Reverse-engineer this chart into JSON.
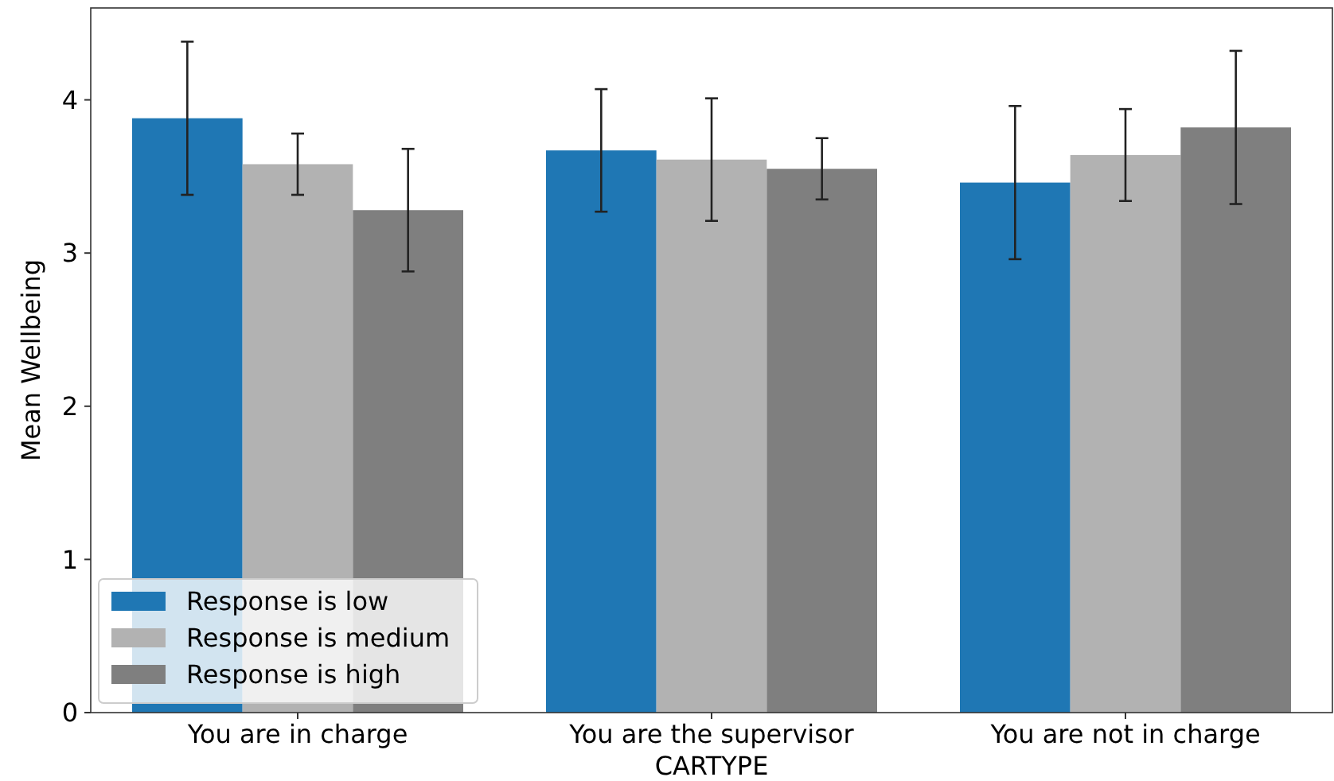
{
  "chart_data": {
    "type": "bar",
    "xlabel": "CARTYPE",
    "ylabel": "Mean Wellbeing",
    "categories": [
      "You are in charge",
      "You are the supervisor",
      "You are not in charge"
    ],
    "series": [
      {
        "name": "Response is low",
        "color": "#1f77b4",
        "values": [
          3.88,
          3.67,
          3.46
        ],
        "errors": [
          0.5,
          0.4,
          0.5
        ]
      },
      {
        "name": "Response is medium",
        "color": "#b2b2b2",
        "values": [
          3.58,
          3.61,
          3.64
        ],
        "errors": [
          0.2,
          0.4,
          0.3
        ]
      },
      {
        "name": "Response is high",
        "color": "#7f7f7f",
        "values": [
          3.28,
          3.55,
          3.82
        ],
        "errors": [
          0.4,
          0.2,
          0.5
        ]
      }
    ],
    "ylim": [
      0,
      4.6
    ],
    "yticks": [
      0,
      1,
      2,
      3,
      4
    ],
    "legend": "bottom left",
    "grid": false
  }
}
